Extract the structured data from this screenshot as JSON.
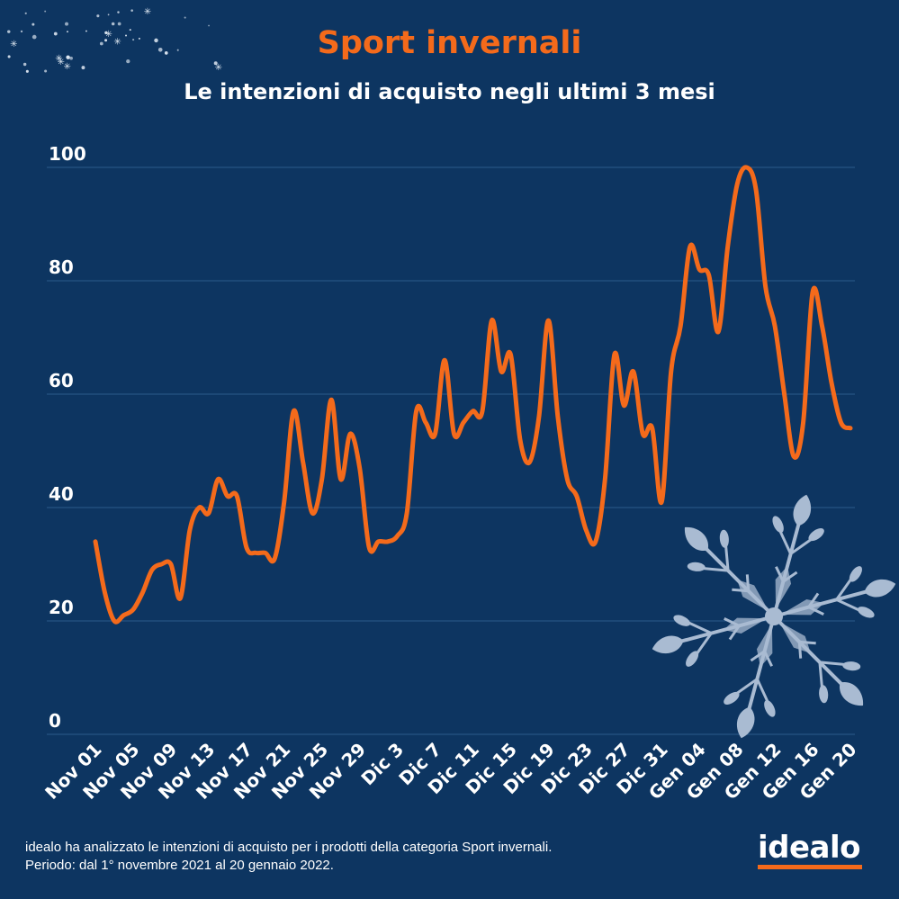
{
  "header": {
    "title": "Sport invernali",
    "subtitle": "Le intenzioni di acquisto negli ultimi 3 mesi"
  },
  "footer": {
    "note": "idealo ha analizzato le intenzioni di acquisto per i prodotti della categoria Sport invernali. Periodo: dal 1° novembre 2021 al 20 gennaio 2022.",
    "brand": "idealo"
  },
  "colors": {
    "background": "#0d3561",
    "line": "#f46a1b",
    "grid": "#2a5a8c",
    "text": "#ffffff",
    "snowflake": "#a9bbd2"
  },
  "decorations": [
    "stars-icon",
    "snowflake-icon"
  ],
  "chart_data": {
    "type": "line",
    "title": "",
    "xlabel": "",
    "ylabel": "",
    "ylim": [
      0,
      100
    ],
    "yticks": [
      0,
      20,
      40,
      60,
      80,
      100
    ],
    "grid": true,
    "x_tick_labels": [
      "Nov 01",
      "Nov 05",
      "Nov 09",
      "Nov 13",
      "Nov 17",
      "Nov 21",
      "Nov 25",
      "Nov 29",
      "Dic 3",
      "Dic 7",
      "Dic 11",
      "Dic 15",
      "Dic 19",
      "Dic 23",
      "Dic 27",
      "Dic 31",
      "Gen 04",
      "Gen 08",
      "Gen 12",
      "Gen 16",
      "Gen 20"
    ],
    "x": [
      "2021-11-01",
      "2021-11-02",
      "2021-11-03",
      "2021-11-04",
      "2021-11-05",
      "2021-11-06",
      "2021-11-07",
      "2021-11-08",
      "2021-11-09",
      "2021-11-10",
      "2021-11-11",
      "2021-11-12",
      "2021-11-13",
      "2021-11-14",
      "2021-11-15",
      "2021-11-16",
      "2021-11-17",
      "2021-11-18",
      "2021-11-19",
      "2021-11-20",
      "2021-11-21",
      "2021-11-22",
      "2021-11-23",
      "2021-11-24",
      "2021-11-25",
      "2021-11-26",
      "2021-11-27",
      "2021-11-28",
      "2021-11-29",
      "2021-11-30",
      "2021-12-01",
      "2021-12-02",
      "2021-12-03",
      "2021-12-04",
      "2021-12-05",
      "2021-12-06",
      "2021-12-07",
      "2021-12-08",
      "2021-12-09",
      "2021-12-10",
      "2021-12-11",
      "2021-12-12",
      "2021-12-13",
      "2021-12-14",
      "2021-12-15",
      "2021-12-16",
      "2021-12-17",
      "2021-12-18",
      "2021-12-19",
      "2021-12-20",
      "2021-12-21",
      "2021-12-22",
      "2021-12-23",
      "2021-12-24",
      "2021-12-25",
      "2021-12-26",
      "2021-12-27",
      "2021-12-28",
      "2021-12-29",
      "2021-12-30",
      "2021-12-31",
      "2022-01-01",
      "2022-01-02",
      "2022-01-03",
      "2022-01-04",
      "2022-01-05",
      "2022-01-06",
      "2022-01-07",
      "2022-01-08",
      "2022-01-09",
      "2022-01-10",
      "2022-01-11",
      "2022-01-12",
      "2022-01-13",
      "2022-01-14",
      "2022-01-15",
      "2022-01-16",
      "2022-01-17",
      "2022-01-18",
      "2022-01-19",
      "2022-01-20"
    ],
    "series": [
      {
        "values": [
          34,
          25,
          20,
          21,
          22,
          25,
          29,
          30,
          30,
          24,
          36,
          40,
          39,
          45,
          42,
          42,
          33,
          32,
          32,
          31,
          41,
          57,
          48,
          39,
          45,
          59,
          45,
          53,
          47,
          33,
          34,
          34,
          35,
          39,
          57,
          55,
          53,
          66,
          53,
          55,
          57,
          57,
          73,
          64,
          67,
          52,
          48,
          56,
          73,
          56,
          45,
          42,
          36,
          34,
          45,
          67,
          58,
          64,
          53,
          54,
          41,
          64,
          72,
          86,
          82,
          81,
          71,
          86,
          97,
          100,
          96,
          79,
          72,
          60,
          49,
          55,
          78,
          72,
          62,
          55,
          54
        ]
      }
    ]
  }
}
